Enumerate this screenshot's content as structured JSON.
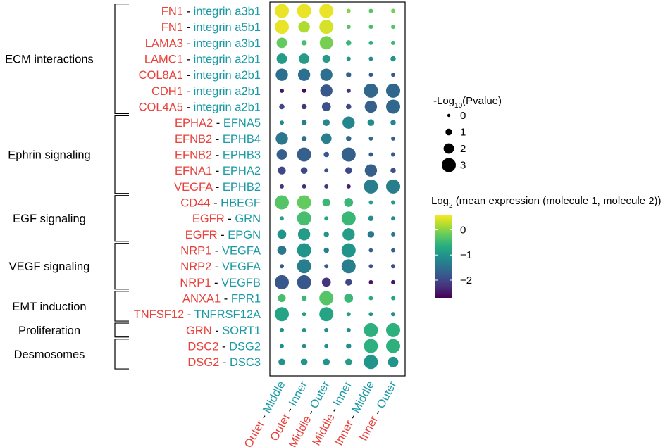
{
  "chart_data": {
    "type": "dot-plot",
    "columns": [
      {
        "a": "Outer",
        "b": "Middle"
      },
      {
        "a": "Outer",
        "b": "Inner"
      },
      {
        "a": "Middle",
        "b": "Outer"
      },
      {
        "a": "Middle",
        "b": "Inner"
      },
      {
        "a": "Inner",
        "b": "Middle"
      },
      {
        "a": "Inner",
        "b": "Outer"
      }
    ],
    "rows": [
      {
        "m1": "FN1",
        "m2": "integrin a3b1"
      },
      {
        "m1": "FN1",
        "m2": "integrin a5b1"
      },
      {
        "m1": "LAMA3",
        "m2": "integrin a3b1"
      },
      {
        "m1": "LAMC1",
        "m2": "integrin a2b1"
      },
      {
        "m1": "COL8A1",
        "m2": "integrin a2b1"
      },
      {
        "m1": "CDH1",
        "m2": "integrin a2b1"
      },
      {
        "m1": "COL4A5",
        "m2": "integrin a2b1"
      },
      {
        "m1": "EPHA2",
        "m2": "EFNA5"
      },
      {
        "m1": "EFNB2",
        "m2": "EPHB4"
      },
      {
        "m1": "EFNB2",
        "m2": "EPHB3"
      },
      {
        "m1": "EFNA1",
        "m2": "EPHA2"
      },
      {
        "m1": "VEGFA",
        "m2": "EPHB2"
      },
      {
        "m1": "CD44",
        "m2": "HBEGF"
      },
      {
        "m1": "EGFR",
        "m2": "GRN"
      },
      {
        "m1": "EGFR",
        "m2": "EPGN"
      },
      {
        "m1": "NRP1",
        "m2": "VEGFA"
      },
      {
        "m1": "NRP2",
        "m2": "VEGFA"
      },
      {
        "m1": "NRP1",
        "m2": "VEGFB"
      },
      {
        "m1": "ANXA1",
        "m2": "FPR1"
      },
      {
        "m1": "TNFSF12",
        "m2": "TNFRSF12A"
      },
      {
        "m1": "GRN",
        "m2": "SORT1"
      },
      {
        "m1": "DSC2",
        "m2": "DSG2"
      },
      {
        "m1": "DSG2",
        "m2": "DSC3"
      }
    ],
    "groups": [
      {
        "label": "ECM interactions",
        "start": 0,
        "end": 6
      },
      {
        "label": "Ephrin signaling",
        "start": 7,
        "end": 11
      },
      {
        "label": "EGF signaling",
        "start": 12,
        "end": 14
      },
      {
        "label": "VEGF signaling",
        "start": 15,
        "end": 17
      },
      {
        "label": "EMT induction",
        "start": 18,
        "end": 19
      },
      {
        "label": "Proliferation",
        "start": 20,
        "end": 20
      },
      {
        "label": "Desmosomes",
        "start": 21,
        "end": 22
      }
    ],
    "neglog10_pvalue": [
      [
        3.0,
        3.0,
        3.0,
        0.3,
        0.3,
        0.3
      ],
      [
        3.0,
        2.3,
        3.0,
        0.3,
        0.3,
        0.3
      ],
      [
        2.0,
        0.6,
        2.8,
        0.6,
        0.3,
        0.3
      ],
      [
        2.0,
        2.0,
        1.3,
        0.3,
        0.3,
        0.6
      ],
      [
        2.5,
        2.5,
        2.5,
        0.6,
        0.3,
        0.3
      ],
      [
        0.3,
        0.3,
        2.5,
        0.3,
        3.0,
        3.0
      ],
      [
        0.6,
        0.6,
        1.6,
        0.6,
        2.5,
        3.0
      ],
      [
        0.3,
        0.6,
        1.0,
        2.5,
        1.0,
        0.6
      ],
      [
        2.5,
        0.6,
        2.0,
        0.6,
        0.3,
        0.3
      ],
      [
        2.0,
        3.0,
        0.6,
        3.0,
        0.3,
        0.3
      ],
      [
        1.3,
        1.0,
        0.3,
        1.0,
        2.5,
        0.6
      ],
      [
        0.3,
        0.3,
        0.3,
        0.3,
        3.0,
        3.0
      ],
      [
        3.0,
        3.0,
        1.3,
        1.6,
        0.3,
        0.3
      ],
      [
        0.3,
        3.0,
        0.3,
        3.0,
        0.6,
        0.3
      ],
      [
        1.6,
        2.5,
        0.6,
        2.5,
        1.0,
        0.3
      ],
      [
        1.6,
        3.0,
        0.6,
        3.0,
        0.3,
        0.3
      ],
      [
        0.3,
        3.0,
        0.3,
        3.0,
        0.3,
        0.3
      ],
      [
        3.0,
        3.0,
        1.6,
        1.0,
        0.3,
        0.3
      ],
      [
        1.3,
        0.6,
        3.0,
        1.6,
        0.3,
        0.3
      ],
      [
        3.0,
        0.3,
        3.0,
        0.3,
        0.3,
        0.3
      ],
      [
        0.3,
        0.3,
        0.3,
        0.3,
        3.0,
        3.0
      ],
      [
        0.3,
        0.3,
        0.3,
        0.6,
        3.0,
        3.0
      ],
      [
        1.0,
        1.0,
        1.0,
        1.0,
        3.0,
        2.0
      ]
    ],
    "log2_mean_expression": [
      [
        0.5,
        0.5,
        0.5,
        0.0,
        -0.3,
        -0.1
      ],
      [
        0.5,
        0.2,
        0.4,
        -0.3,
        -0.4,
        -0.3
      ],
      [
        -0.2,
        -0.4,
        -0.1,
        -0.5,
        -0.6,
        -0.5
      ],
      [
        -0.9,
        -0.9,
        -0.9,
        -1.0,
        -1.1,
        -1.0
      ],
      [
        -1.5,
        -1.5,
        -1.5,
        -1.7,
        -1.8,
        -1.8
      ],
      [
        -2.5,
        -2.6,
        -1.8,
        -2.2,
        -1.6,
        -1.6
      ],
      [
        -2.0,
        -2.2,
        -1.9,
        -2.0,
        -1.7,
        -1.6
      ],
      [
        -1.2,
        -1.3,
        -1.2,
        -1.2,
        -1.1,
        -1.2
      ],
      [
        -1.4,
        -1.5,
        -1.3,
        -1.6,
        -1.6,
        -1.7
      ],
      [
        -1.7,
        -1.7,
        -1.8,
        -1.7,
        -1.8,
        -1.8
      ],
      [
        -2.0,
        -2.0,
        -1.9,
        -2.0,
        -1.7,
        -1.9
      ],
      [
        -2.2,
        -2.3,
        -2.2,
        -2.4,
        -1.3,
        -1.3
      ],
      [
        -0.3,
        -0.2,
        -0.5,
        -0.5,
        -0.8,
        -0.9
      ],
      [
        -0.8,
        -0.4,
        -0.8,
        -0.5,
        -1.1,
        -1.1
      ],
      [
        -1.0,
        -0.9,
        -1.0,
        -0.9,
        -1.4,
        -1.4
      ],
      [
        -1.4,
        -1.0,
        -1.3,
        -1.0,
        -1.7,
        -1.7
      ],
      [
        -1.8,
        -1.3,
        -1.8,
        -1.3,
        -1.9,
        -1.9
      ],
      [
        -1.8,
        -1.8,
        -2.2,
        -2.0,
        -2.5,
        -2.5
      ],
      [
        -0.4,
        -0.5,
        -0.3,
        -0.5,
        -0.7,
        -0.8
      ],
      [
        -0.8,
        -0.9,
        -0.8,
        -0.9,
        -1.0,
        -1.1
      ],
      [
        -1.0,
        -1.0,
        -1.1,
        -1.1,
        -0.6,
        -0.6
      ],
      [
        -1.1,
        -1.1,
        -1.1,
        -1.1,
        -0.6,
        -0.6
      ],
      [
        -1.0,
        -1.0,
        -1.0,
        -0.9,
        -1.0,
        -1.0
      ]
    ],
    "size_legend": {
      "title_prefix": "-Log",
      "title_sub": "10",
      "title_suffix": "(Pvalue)",
      "values": [
        0,
        1,
        2,
        3
      ]
    },
    "color_legend": {
      "title_prefix": "Log",
      "title_sub": "2",
      "title_suffix": " (mean expression (molecule 1, molecule 2))",
      "range": [
        -2.7,
        0.6
      ],
      "ticks": [
        0,
        -1,
        -2
      ],
      "tick_labels": [
        "0",
        "−1",
        "−2"
      ]
    }
  }
}
